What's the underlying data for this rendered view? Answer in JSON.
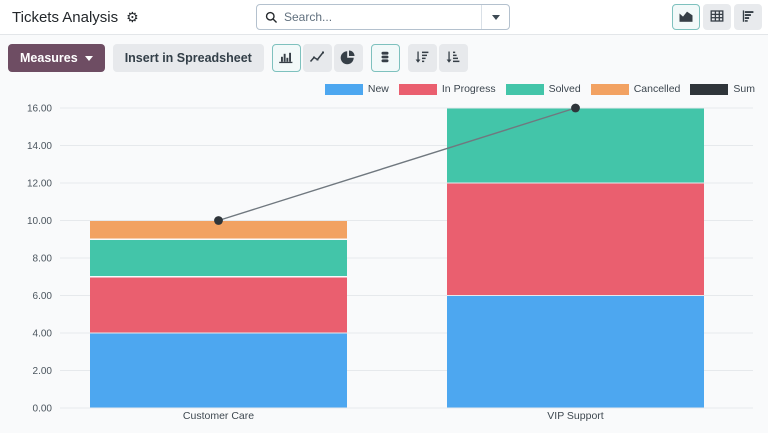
{
  "header": {
    "title": "Tickets Analysis"
  },
  "icons": {
    "gear": "⚙"
  },
  "search": {
    "placeholder": "Search..."
  },
  "view_switcher": {
    "graph_selected": true,
    "pivot_selected": false,
    "cohort_selected": false
  },
  "toolbar": {
    "measures_label": "Measures",
    "insert_label": "Insert in Spreadsheet",
    "bar_selected": true,
    "line_selected": false,
    "pie_selected": false,
    "stacked_selected": true
  },
  "chart_data": {
    "type": "bar",
    "stacked": true,
    "title": "",
    "xlabel": "",
    "ylabel": "",
    "grid": true,
    "legend_position": "top-right",
    "categories": [
      "Customer Care",
      "VIP Support"
    ],
    "series": [
      {
        "name": "New",
        "color": "#4DA7F0",
        "values": [
          4,
          6
        ]
      },
      {
        "name": "In Progress",
        "color": "#EA5F6F",
        "values": [
          3,
          6
        ]
      },
      {
        "name": "Solved",
        "color": "#43C5A9",
        "values": [
          2,
          4
        ]
      },
      {
        "name": "Cancelled",
        "color": "#F2A262",
        "values": [
          1,
          0
        ]
      },
      {
        "name": "Sum",
        "type": "line",
        "color": "#2F353A",
        "line_color": "#70787F",
        "values": [
          10,
          16
        ]
      }
    ],
    "ylim": [
      0,
      16
    ],
    "yticks": [
      "0.00",
      "2.00",
      "4.00",
      "6.00",
      "8.00",
      "10.00",
      "12.00",
      "14.00",
      "16.00"
    ]
  }
}
